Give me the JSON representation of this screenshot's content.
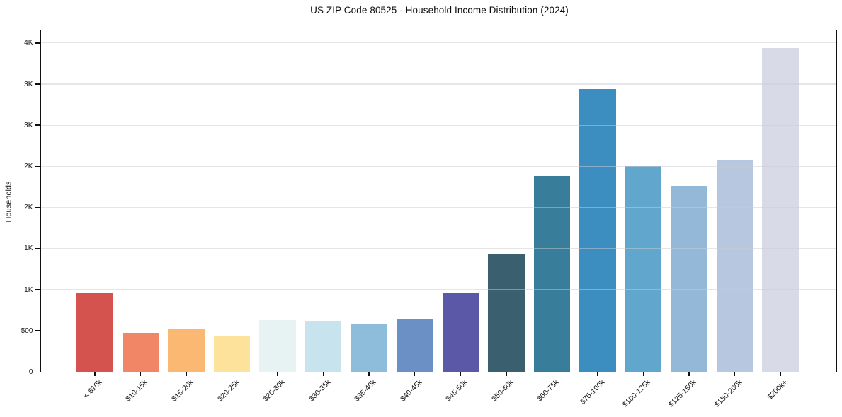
{
  "chart_data": {
    "type": "bar",
    "title": "US ZIP Code 80525 - Household Income Distribution (2024)",
    "xlabel": "",
    "ylabel": "Households",
    "categories": [
      "< $10k",
      "$10-15k",
      "$15-20k",
      "$20-25k",
      "$25-30k",
      "$30-35k",
      "$35-40k",
      "$40-45k",
      "$45-50k",
      "$50-60k",
      "$60-75k",
      "$75-100k",
      "$100-125k",
      "$125-150k",
      "$150-200k",
      "$200k+"
    ],
    "values": [
      960,
      475,
      515,
      445,
      635,
      625,
      590,
      645,
      965,
      1440,
      2380,
      3440,
      2500,
      2260,
      2580,
      3940
    ],
    "bar_colors": [
      "#d5534e",
      "#f08665",
      "#fab873",
      "#fde29b",
      "#e7f2f2",
      "#c7e3ee",
      "#8ebcdb",
      "#6b90c6",
      "#5b58a7",
      "#3a5f6f",
      "#387e9b",
      "#3c8ec0",
      "#61a7cd",
      "#94b8d7",
      "#b7c7df",
      "#d9dae8"
    ],
    "ylim": [
      0,
      4150
    ],
    "yticks": [
      {
        "value": 0,
        "label": "0"
      },
      {
        "value": 500,
        "label": "500"
      },
      {
        "value": 1000,
        "label": "1K"
      },
      {
        "value": 1500,
        "label": "1K"
      },
      {
        "value": 2000,
        "label": "2K"
      },
      {
        "value": 2500,
        "label": "2K"
      },
      {
        "value": 3000,
        "label": "3K"
      },
      {
        "value": 3500,
        "label": "3K"
      },
      {
        "value": 4000,
        "label": "4K"
      }
    ],
    "grid": "horizontal, drawn faintly over bars",
    "legend": "none"
  }
}
